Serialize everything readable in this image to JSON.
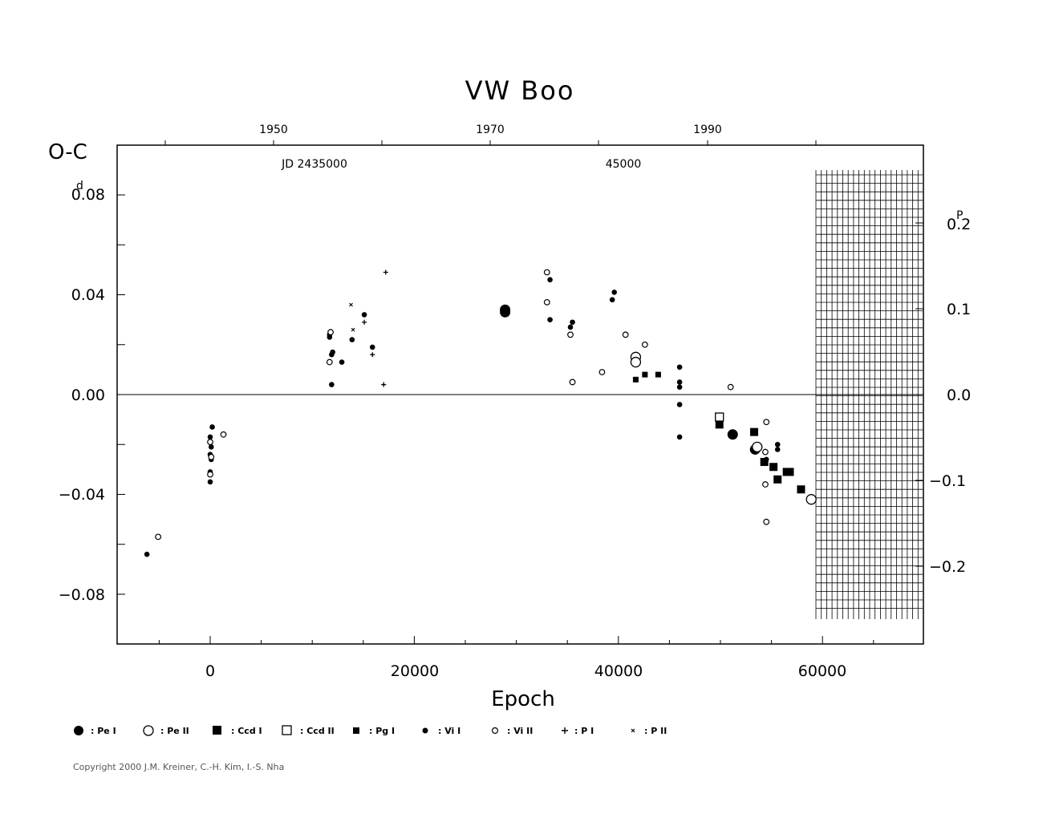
{
  "chart_data": {
    "type": "scatter",
    "title": "VW  Boo",
    "ylabel": "O-C",
    "xlabel": "Epoch",
    "xlim": [
      -9000,
      70000
    ],
    "ylim": [
      -0.1,
      0.1
    ],
    "left_unit": "d",
    "right_unit": "P",
    "x_ticks": [
      "0",
      "20000",
      "40000",
      "60000"
    ],
    "y_ticks": [
      "0.08",
      "0.04",
      "0.00",
      "−0.04",
      "−0.08"
    ],
    "right_ticks": [
      "0.2",
      "0.1",
      "0.0",
      "−0.1",
      "−0.2"
    ],
    "year_ticks": [
      "1950",
      "1970",
      "1990"
    ],
    "jd_labels": [
      "JD  2435000",
      "45000"
    ],
    "legend": [
      {
        "key": "pe1",
        "label": ": Pe  I"
      },
      {
        "key": "pe2",
        "label": ": Pe  II"
      },
      {
        "key": "ccd1",
        "label": ": Ccd  I"
      },
      {
        "key": "ccd2",
        "label": ": Ccd  II"
      },
      {
        "key": "pg1",
        "label": ": Pg  I"
      },
      {
        "key": "vi1",
        "label": ": Vi  I"
      },
      {
        "key": "vi2",
        "label": ": Vi  II"
      },
      {
        "key": "p1",
        "label": ": P  I"
      },
      {
        "key": "p2",
        "label": ": P  II"
      }
    ],
    "series": [
      {
        "key": "pe1",
        "points": [
          [
            28900,
            0.034
          ],
          [
            28900,
            0.033
          ],
          [
            51200,
            -0.016
          ],
          [
            53400,
            -0.022
          ]
        ]
      },
      {
        "key": "pe2",
        "points": [
          [
            41700,
            0.015
          ],
          [
            41700,
            0.013
          ],
          [
            53600,
            -0.021
          ],
          [
            58900,
            -0.042
          ]
        ]
      },
      {
        "key": "ccd1",
        "points": [
          [
            49900,
            -0.012
          ],
          [
            53300,
            -0.015
          ],
          [
            54300,
            -0.027
          ],
          [
            55200,
            -0.029
          ],
          [
            55600,
            -0.034
          ],
          [
            56500,
            -0.031
          ],
          [
            56800,
            -0.031
          ],
          [
            57900,
            -0.038
          ]
        ]
      },
      {
        "key": "ccd2",
        "points": [
          [
            49900,
            -0.009
          ]
        ]
      },
      {
        "key": "pg1",
        "points": [
          [
            41700,
            0.006
          ],
          [
            42600,
            0.008
          ],
          [
            43900,
            0.008
          ]
        ]
      },
      {
        "key": "vi1",
        "points": [
          [
            -6200,
            -0.064
          ],
          [
            0,
            -0.017
          ],
          [
            100,
            -0.021
          ],
          [
            200,
            -0.013
          ],
          [
            0,
            -0.024
          ],
          [
            100,
            -0.026
          ],
          [
            0,
            -0.031
          ],
          [
            0,
            -0.035
          ],
          [
            11700,
            0.024
          ],
          [
            11700,
            0.023
          ],
          [
            11900,
            0.016
          ],
          [
            12000,
            0.017
          ],
          [
            11900,
            0.004
          ],
          [
            12900,
            0.013
          ],
          [
            13900,
            0.022
          ],
          [
            15100,
            0.032
          ],
          [
            15900,
            0.019
          ],
          [
            33300,
            0.046
          ],
          [
            33300,
            0.03
          ],
          [
            35300,
            0.027
          ],
          [
            35500,
            0.029
          ],
          [
            39400,
            0.038
          ],
          [
            39600,
            0.041
          ],
          [
            46000,
            0.011
          ],
          [
            46000,
            0.005
          ],
          [
            46000,
            0.003
          ],
          [
            46000,
            -0.004
          ],
          [
            46000,
            -0.017
          ],
          [
            54500,
            -0.026
          ],
          [
            55600,
            -0.02
          ],
          [
            55600,
            -0.022
          ]
        ]
      },
      {
        "key": "vi2",
        "points": [
          [
            -5100,
            -0.057
          ],
          [
            0,
            -0.019
          ],
          [
            100,
            -0.025
          ],
          [
            1300,
            -0.016
          ],
          [
            0,
            -0.032
          ],
          [
            11800,
            0.025
          ],
          [
            11700,
            0.013
          ],
          [
            33000,
            0.049
          ],
          [
            33000,
            0.037
          ],
          [
            35300,
            0.024
          ],
          [
            35500,
            0.005
          ],
          [
            38400,
            0.009
          ],
          [
            40700,
            0.024
          ],
          [
            42600,
            0.02
          ],
          [
            51000,
            0.003
          ],
          [
            54500,
            -0.011
          ],
          [
            54400,
            -0.023
          ],
          [
            54400,
            -0.036
          ],
          [
            54500,
            -0.051
          ]
        ]
      },
      {
        "key": "p1",
        "points": [
          [
            17200,
            0.049
          ],
          [
            15100,
            0.029
          ],
          [
            15900,
            0.016
          ],
          [
            17000,
            0.004
          ]
        ]
      },
      {
        "key": "p2",
        "points": [
          [
            13800,
            0.036
          ],
          [
            14000,
            0.026
          ]
        ]
      }
    ]
  },
  "copyright": "Copyright 2000 J.M. Kreiner, C.-H. Kim, I.-S. Nha"
}
